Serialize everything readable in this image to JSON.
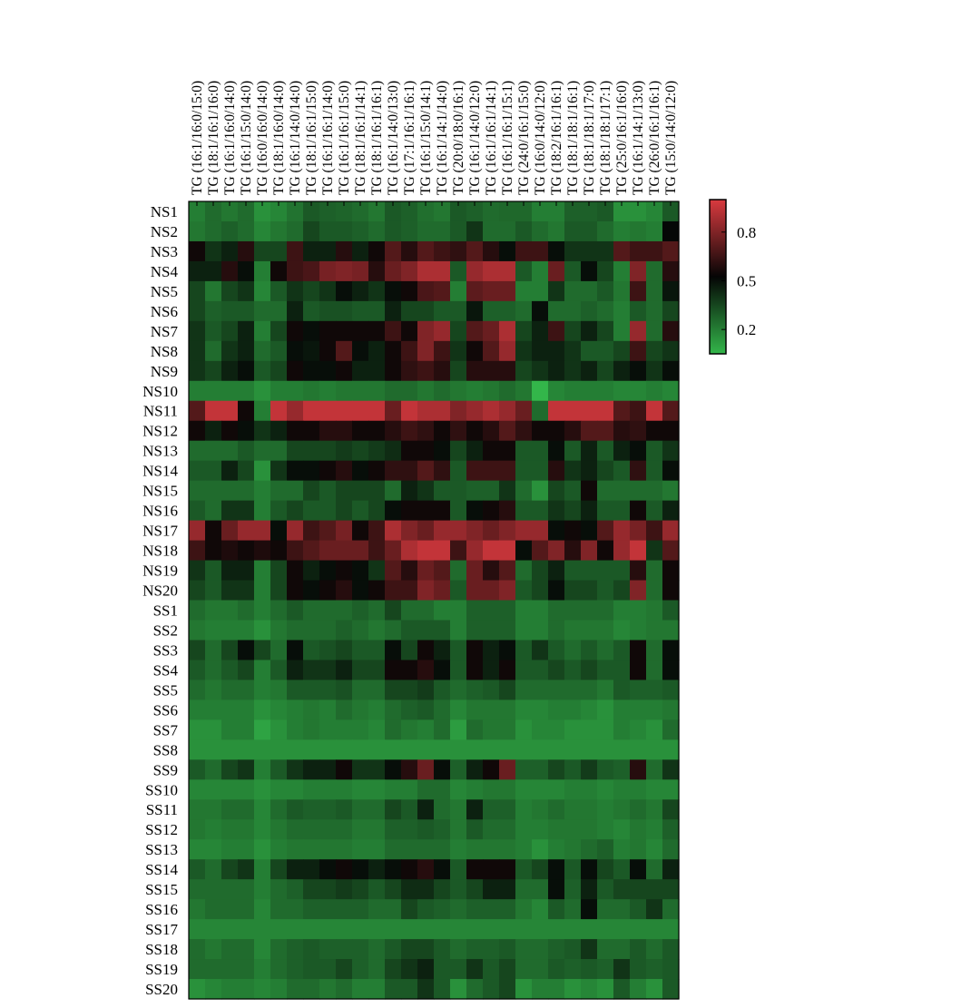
{
  "chart_data": {
    "type": "heatmap",
    "title": "",
    "xlabel": "",
    "ylabel": "",
    "columns": [
      "TG (16:1/16:0/15:0)",
      "TG (18:1/16:1/16:0)",
      "TG (16:1/16:0/14:0)",
      "TG (16:1/15:0/14:0)",
      "TG (16:0/16:0/14:0)",
      "TG (18:1/16:0/14:0)",
      "TG (16:1/14:0/14:0)",
      "TG (18:1/16:1/15:0)",
      "TG (16:1/16:1/14:0)",
      "TG (16:1/16:1/15:0)",
      "TG (18:1/16:1/14:1)",
      "TG (18:1/16:1/16:1)",
      "TG (16:1/14:0/13:0)",
      "TG (17:1/16:1/16:1)",
      "TG (16:1/15:0/14:1)",
      "TG (16:1/14:1/14:0)",
      "TG (20:0/18:0/16:1)",
      "TG (16:1/14:0/12:0)",
      "TG (16:1/16:1/14:1)",
      "TG (16:1/16:1/15:1)",
      "TG (24:0/16:1/15:0)",
      "TG (16:0/14:0/12:0)",
      "TG (18:2/16:1/16:1)",
      "TG (18:1/18:1/16:1)",
      "TG (18:1/18:1/17:0)",
      "TG (18:1/18:1/17:1)",
      "TG (25:0/16:1/16:0)",
      "TG (16:1/14:1/13:0)",
      "TG (26:0/16:1/16:1)",
      "TG (15:0/14:0/12:0)"
    ],
    "rows": [
      "NS1",
      "NS2",
      "NS3",
      "NS4",
      "NS5",
      "NS6",
      "NS7",
      "NS8",
      "NS9",
      "NS10",
      "NS11",
      "NS12",
      "NS13",
      "NS14",
      "NS15",
      "NS16",
      "NS17",
      "NS18",
      "NS19",
      "NS20",
      "SS1",
      "SS2",
      "SS3",
      "SS4",
      "SS5",
      "SS6",
      "SS7",
      "SS8",
      "SS9",
      "SS10",
      "SS11",
      "SS12",
      "SS13",
      "SS14",
      "SS15",
      "SS16",
      "SS17",
      "SS18",
      "SS19",
      "SS20"
    ],
    "values": [
      [
        0.2,
        0.25,
        0.22,
        0.25,
        0.15,
        0.18,
        0.23,
        0.3,
        0.28,
        0.27,
        0.25,
        0.22,
        0.3,
        0.28,
        0.24,
        0.22,
        0.3,
        0.28,
        0.25,
        0.26,
        0.26,
        0.2,
        0.2,
        0.28,
        0.28,
        0.3,
        0.15,
        0.15,
        0.18,
        0.3
      ],
      [
        0.22,
        0.25,
        0.28,
        0.25,
        0.18,
        0.22,
        0.25,
        0.35,
        0.3,
        0.3,
        0.28,
        0.25,
        0.3,
        0.28,
        0.25,
        0.25,
        0.3,
        0.4,
        0.25,
        0.25,
        0.3,
        0.25,
        0.22,
        0.3,
        0.3,
        0.25,
        0.2,
        0.22,
        0.2,
        0.52
      ],
      [
        0.55,
        0.4,
        0.45,
        0.6,
        0.35,
        0.35,
        0.65,
        0.45,
        0.45,
        0.6,
        0.45,
        0.55,
        0.7,
        0.6,
        0.7,
        0.65,
        0.62,
        0.7,
        0.6,
        0.5,
        0.65,
        0.65,
        0.5,
        0.4,
        0.4,
        0.4,
        0.7,
        0.65,
        0.65,
        0.7
      ],
      [
        0.45,
        0.45,
        0.6,
        0.5,
        0.2,
        0.55,
        0.65,
        0.68,
        0.78,
        0.8,
        0.78,
        0.6,
        0.75,
        0.8,
        0.9,
        0.9,
        0.3,
        0.85,
        0.9,
        0.9,
        0.3,
        0.2,
        0.75,
        0.3,
        0.5,
        0.35,
        0.2,
        0.8,
        0.25,
        0.6
      ],
      [
        0.35,
        0.22,
        0.35,
        0.4,
        0.18,
        0.3,
        0.4,
        0.35,
        0.4,
        0.5,
        0.45,
        0.4,
        0.5,
        0.55,
        0.68,
        0.7,
        0.2,
        0.72,
        0.75,
        0.75,
        0.2,
        0.2,
        0.4,
        0.25,
        0.25,
        0.3,
        0.22,
        0.65,
        0.25,
        0.48
      ],
      [
        0.35,
        0.28,
        0.3,
        0.3,
        0.25,
        0.25,
        0.45,
        0.3,
        0.32,
        0.32,
        0.3,
        0.3,
        0.45,
        0.35,
        0.35,
        0.3,
        0.3,
        0.48,
        0.28,
        0.28,
        0.25,
        0.5,
        0.25,
        0.25,
        0.28,
        0.25,
        0.2,
        0.3,
        0.25,
        0.35
      ],
      [
        0.4,
        0.3,
        0.35,
        0.45,
        0.2,
        0.35,
        0.55,
        0.5,
        0.55,
        0.55,
        0.55,
        0.55,
        0.65,
        0.55,
        0.8,
        0.85,
        0.35,
        0.7,
        0.75,
        0.9,
        0.35,
        0.45,
        0.65,
        0.35,
        0.45,
        0.35,
        0.2,
        0.85,
        0.25,
        0.6
      ],
      [
        0.4,
        0.25,
        0.4,
        0.45,
        0.25,
        0.3,
        0.5,
        0.48,
        0.55,
        0.7,
        0.5,
        0.45,
        0.55,
        0.65,
        0.8,
        0.65,
        0.4,
        0.55,
        0.7,
        0.85,
        0.4,
        0.45,
        0.45,
        0.4,
        0.3,
        0.3,
        0.35,
        0.65,
        0.35,
        0.4
      ],
      [
        0.4,
        0.35,
        0.45,
        0.5,
        0.3,
        0.35,
        0.55,
        0.5,
        0.5,
        0.55,
        0.45,
        0.45,
        0.55,
        0.62,
        0.65,
        0.6,
        0.35,
        0.6,
        0.6,
        0.6,
        0.35,
        0.4,
        0.45,
        0.4,
        0.45,
        0.35,
        0.45,
        0.5,
        0.4,
        0.5
      ],
      [
        0.2,
        0.2,
        0.2,
        0.2,
        0.15,
        0.2,
        0.2,
        0.22,
        0.2,
        0.22,
        0.22,
        0.22,
        0.25,
        0.25,
        0.22,
        0.25,
        0.22,
        0.2,
        0.22,
        0.25,
        0.22,
        0.05,
        0.18,
        0.2,
        0.2,
        0.2,
        0.18,
        0.18,
        0.2,
        0.18
      ],
      [
        0.7,
        0.95,
        0.95,
        0.55,
        0.2,
        0.95,
        0.85,
        0.95,
        0.95,
        0.95,
        0.95,
        0.95,
        0.75,
        0.95,
        0.9,
        0.9,
        0.8,
        0.85,
        0.9,
        0.85,
        0.75,
        0.25,
        0.95,
        0.95,
        0.95,
        0.95,
        0.7,
        0.65,
        0.95,
        0.7
      ],
      [
        0.55,
        0.45,
        0.55,
        0.5,
        0.4,
        0.45,
        0.55,
        0.55,
        0.6,
        0.6,
        0.55,
        0.55,
        0.6,
        0.65,
        0.62,
        0.55,
        0.62,
        0.55,
        0.6,
        0.7,
        0.62,
        0.55,
        0.55,
        0.6,
        0.7,
        0.7,
        0.6,
        0.62,
        0.55,
        0.55
      ],
      [
        0.25,
        0.25,
        0.25,
        0.3,
        0.25,
        0.25,
        0.35,
        0.35,
        0.35,
        0.38,
        0.35,
        0.38,
        0.42,
        0.55,
        0.55,
        0.5,
        0.35,
        0.45,
        0.55,
        0.55,
        0.3,
        0.3,
        0.5,
        0.3,
        0.45,
        0.3,
        0.45,
        0.5,
        0.3,
        0.4
      ],
      [
        0.3,
        0.3,
        0.45,
        0.35,
        0.15,
        0.4,
        0.5,
        0.5,
        0.55,
        0.6,
        0.5,
        0.55,
        0.62,
        0.62,
        0.7,
        0.62,
        0.3,
        0.65,
        0.65,
        0.65,
        0.3,
        0.3,
        0.6,
        0.4,
        0.45,
        0.35,
        0.3,
        0.62,
        0.3,
        0.5
      ],
      [
        0.25,
        0.25,
        0.25,
        0.25,
        0.2,
        0.25,
        0.25,
        0.35,
        0.3,
        0.35,
        0.35,
        0.35,
        0.25,
        0.45,
        0.4,
        0.3,
        0.3,
        0.28,
        0.28,
        0.4,
        0.25,
        0.15,
        0.35,
        0.3,
        0.55,
        0.25,
        0.25,
        0.25,
        0.25,
        0.22
      ],
      [
        0.3,
        0.25,
        0.4,
        0.4,
        0.2,
        0.3,
        0.35,
        0.3,
        0.3,
        0.35,
        0.3,
        0.35,
        0.5,
        0.55,
        0.55,
        0.55,
        0.3,
        0.5,
        0.55,
        0.6,
        0.3,
        0.3,
        0.4,
        0.35,
        0.45,
        0.3,
        0.3,
        0.55,
        0.3,
        0.45
      ],
      [
        0.85,
        0.55,
        0.75,
        0.85,
        0.85,
        0.5,
        0.85,
        0.65,
        0.7,
        0.78,
        0.55,
        0.65,
        0.9,
        0.8,
        0.75,
        0.85,
        0.85,
        0.8,
        0.75,
        0.8,
        0.85,
        0.85,
        0.5,
        0.55,
        0.5,
        0.7,
        0.85,
        0.78,
        0.65,
        0.85
      ],
      [
        0.65,
        0.55,
        0.58,
        0.55,
        0.58,
        0.55,
        0.65,
        0.7,
        0.75,
        0.75,
        0.75,
        0.65,
        0.75,
        0.9,
        0.95,
        0.95,
        0.65,
        0.85,
        0.95,
        0.95,
        0.5,
        0.7,
        0.8,
        0.6,
        0.8,
        0.55,
        0.85,
        0.95,
        0.4,
        0.7
      ],
      [
        0.4,
        0.3,
        0.45,
        0.45,
        0.2,
        0.35,
        0.55,
        0.45,
        0.5,
        0.55,
        0.5,
        0.4,
        0.7,
        0.6,
        0.75,
        0.7,
        0.25,
        0.75,
        0.6,
        0.7,
        0.25,
        0.35,
        0.45,
        0.3,
        0.3,
        0.3,
        0.3,
        0.6,
        0.25,
        0.55
      ],
      [
        0.35,
        0.3,
        0.4,
        0.4,
        0.2,
        0.35,
        0.55,
        0.5,
        0.55,
        0.6,
        0.5,
        0.55,
        0.65,
        0.65,
        0.8,
        0.75,
        0.3,
        0.75,
        0.75,
        0.8,
        0.3,
        0.35,
        0.5,
        0.35,
        0.35,
        0.3,
        0.35,
        0.8,
        0.25,
        0.55
      ],
      [
        0.25,
        0.22,
        0.22,
        0.25,
        0.2,
        0.25,
        0.3,
        0.25,
        0.25,
        0.25,
        0.28,
        0.25,
        0.35,
        0.25,
        0.25,
        0.2,
        0.2,
        0.28,
        0.28,
        0.28,
        0.2,
        0.2,
        0.25,
        0.25,
        0.25,
        0.25,
        0.2,
        0.2,
        0.22,
        0.3
      ],
      [
        0.22,
        0.2,
        0.2,
        0.2,
        0.15,
        0.22,
        0.25,
        0.25,
        0.25,
        0.28,
        0.25,
        0.22,
        0.25,
        0.3,
        0.3,
        0.3,
        0.2,
        0.28,
        0.28,
        0.28,
        0.2,
        0.2,
        0.25,
        0.22,
        0.22,
        0.22,
        0.18,
        0.2,
        0.22,
        0.22
      ],
      [
        0.35,
        0.25,
        0.35,
        0.5,
        0.35,
        0.25,
        0.5,
        0.3,
        0.32,
        0.35,
        0.3,
        0.3,
        0.5,
        0.35,
        0.55,
        0.45,
        0.3,
        0.55,
        0.45,
        0.5,
        0.3,
        0.4,
        0.3,
        0.25,
        0.3,
        0.25,
        0.3,
        0.55,
        0.25,
        0.5
      ],
      [
        0.3,
        0.25,
        0.3,
        0.35,
        0.2,
        0.3,
        0.45,
        0.4,
        0.4,
        0.45,
        0.35,
        0.35,
        0.55,
        0.55,
        0.6,
        0.5,
        0.3,
        0.55,
        0.45,
        0.55,
        0.3,
        0.3,
        0.35,
        0.3,
        0.35,
        0.3,
        0.3,
        0.55,
        0.25,
        0.5
      ],
      [
        0.25,
        0.22,
        0.25,
        0.25,
        0.2,
        0.22,
        0.3,
        0.3,
        0.3,
        0.32,
        0.25,
        0.25,
        0.35,
        0.35,
        0.38,
        0.3,
        0.25,
        0.28,
        0.3,
        0.35,
        0.25,
        0.25,
        0.25,
        0.25,
        0.25,
        0.22,
        0.3,
        0.28,
        0.28,
        0.3
      ],
      [
        0.2,
        0.2,
        0.2,
        0.2,
        0.15,
        0.18,
        0.2,
        0.22,
        0.2,
        0.25,
        0.22,
        0.2,
        0.25,
        0.28,
        0.3,
        0.25,
        0.18,
        0.22,
        0.22,
        0.22,
        0.18,
        0.18,
        0.2,
        0.2,
        0.18,
        0.15,
        0.2,
        0.2,
        0.2,
        0.22
      ],
      [
        0.15,
        0.15,
        0.2,
        0.2,
        0.1,
        0.15,
        0.2,
        0.22,
        0.2,
        0.2,
        0.2,
        0.18,
        0.25,
        0.22,
        0.2,
        0.25,
        0.12,
        0.25,
        0.22,
        0.22,
        0.15,
        0.18,
        0.18,
        0.15,
        0.15,
        0.15,
        0.2,
        0.18,
        0.15,
        0.25
      ],
      [
        0.15,
        0.15,
        0.15,
        0.15,
        0.15,
        0.15,
        0.15,
        0.15,
        0.15,
        0.15,
        0.15,
        0.15,
        0.15,
        0.15,
        0.15,
        0.15,
        0.15,
        0.15,
        0.15,
        0.15,
        0.15,
        0.15,
        0.15,
        0.15,
        0.15,
        0.15,
        0.15,
        0.15,
        0.15,
        0.15
      ],
      [
        0.3,
        0.25,
        0.35,
        0.4,
        0.2,
        0.3,
        0.4,
        0.45,
        0.45,
        0.55,
        0.4,
        0.4,
        0.5,
        0.6,
        0.75,
        0.5,
        0.28,
        0.45,
        0.55,
        0.75,
        0.28,
        0.28,
        0.35,
        0.3,
        0.38,
        0.3,
        0.28,
        0.6,
        0.25,
        0.4
      ],
      [
        0.18,
        0.18,
        0.18,
        0.18,
        0.15,
        0.18,
        0.18,
        0.2,
        0.2,
        0.2,
        0.18,
        0.18,
        0.2,
        0.2,
        0.25,
        0.25,
        0.18,
        0.2,
        0.22,
        0.22,
        0.18,
        0.18,
        0.18,
        0.2,
        0.2,
        0.18,
        0.2,
        0.2,
        0.18,
        0.18
      ],
      [
        0.22,
        0.22,
        0.25,
        0.25,
        0.18,
        0.25,
        0.3,
        0.28,
        0.28,
        0.3,
        0.25,
        0.25,
        0.35,
        0.3,
        0.45,
        0.25,
        0.22,
        0.45,
        0.28,
        0.28,
        0.2,
        0.22,
        0.25,
        0.22,
        0.22,
        0.2,
        0.22,
        0.25,
        0.22,
        0.35
      ],
      [
        0.22,
        0.2,
        0.22,
        0.22,
        0.18,
        0.22,
        0.25,
        0.25,
        0.25,
        0.25,
        0.22,
        0.22,
        0.28,
        0.28,
        0.3,
        0.28,
        0.22,
        0.3,
        0.25,
        0.25,
        0.2,
        0.2,
        0.22,
        0.22,
        0.22,
        0.2,
        0.18,
        0.22,
        0.2,
        0.28
      ],
      [
        0.18,
        0.18,
        0.2,
        0.2,
        0.15,
        0.2,
        0.22,
        0.22,
        0.22,
        0.22,
        0.2,
        0.2,
        0.25,
        0.25,
        0.25,
        0.25,
        0.2,
        0.22,
        0.22,
        0.22,
        0.2,
        0.15,
        0.2,
        0.22,
        0.25,
        0.28,
        0.2,
        0.22,
        0.18,
        0.25
      ],
      [
        0.3,
        0.25,
        0.35,
        0.4,
        0.2,
        0.35,
        0.45,
        0.45,
        0.5,
        0.55,
        0.5,
        0.45,
        0.5,
        0.55,
        0.6,
        0.5,
        0.3,
        0.55,
        0.55,
        0.55,
        0.3,
        0.35,
        0.5,
        0.3,
        0.5,
        0.35,
        0.3,
        0.5,
        0.25,
        0.45
      ],
      [
        0.25,
        0.25,
        0.25,
        0.25,
        0.2,
        0.25,
        0.28,
        0.35,
        0.35,
        0.38,
        0.35,
        0.3,
        0.35,
        0.42,
        0.42,
        0.35,
        0.3,
        0.35,
        0.45,
        0.45,
        0.25,
        0.25,
        0.5,
        0.28,
        0.45,
        0.3,
        0.35,
        0.35,
        0.35,
        0.35
      ],
      [
        0.22,
        0.25,
        0.25,
        0.25,
        0.18,
        0.25,
        0.25,
        0.28,
        0.28,
        0.28,
        0.28,
        0.25,
        0.25,
        0.35,
        0.3,
        0.28,
        0.25,
        0.28,
        0.28,
        0.28,
        0.22,
        0.18,
        0.3,
        0.25,
        0.5,
        0.25,
        0.25,
        0.3,
        0.4,
        0.25
      ],
      [
        0.18,
        0.18,
        0.18,
        0.18,
        0.18,
        0.18,
        0.18,
        0.18,
        0.18,
        0.18,
        0.18,
        0.18,
        0.18,
        0.18,
        0.18,
        0.18,
        0.18,
        0.18,
        0.18,
        0.18,
        0.18,
        0.18,
        0.18,
        0.18,
        0.18,
        0.18,
        0.18,
        0.18,
        0.18,
        0.18
      ],
      [
        0.25,
        0.22,
        0.25,
        0.25,
        0.18,
        0.25,
        0.28,
        0.3,
        0.28,
        0.28,
        0.28,
        0.25,
        0.3,
        0.35,
        0.35,
        0.3,
        0.25,
        0.28,
        0.28,
        0.3,
        0.25,
        0.25,
        0.28,
        0.3,
        0.4,
        0.25,
        0.25,
        0.3,
        0.25,
        0.3
      ],
      [
        0.25,
        0.25,
        0.25,
        0.25,
        0.2,
        0.25,
        0.28,
        0.3,
        0.3,
        0.35,
        0.28,
        0.25,
        0.35,
        0.4,
        0.45,
        0.3,
        0.3,
        0.4,
        0.3,
        0.35,
        0.25,
        0.25,
        0.3,
        0.28,
        0.3,
        0.28,
        0.4,
        0.3,
        0.28,
        0.3
      ],
      [
        0.15,
        0.18,
        0.2,
        0.2,
        0.18,
        0.2,
        0.25,
        0.25,
        0.22,
        0.25,
        0.2,
        0.2,
        0.3,
        0.3,
        0.4,
        0.3,
        0.15,
        0.25,
        0.3,
        0.35,
        0.15,
        0.2,
        0.2,
        0.15,
        0.18,
        0.15,
        0.3,
        0.2,
        0.15,
        0.3
      ]
    ],
    "colorbar": {
      "ticks": [
        0.2,
        0.5,
        0.8
      ],
      "range": [
        0.05,
        1.0
      ],
      "low_color": "#33b64a",
      "mid_color": "#050505",
      "high_color": "#d93a3f"
    },
    "grid": false
  }
}
